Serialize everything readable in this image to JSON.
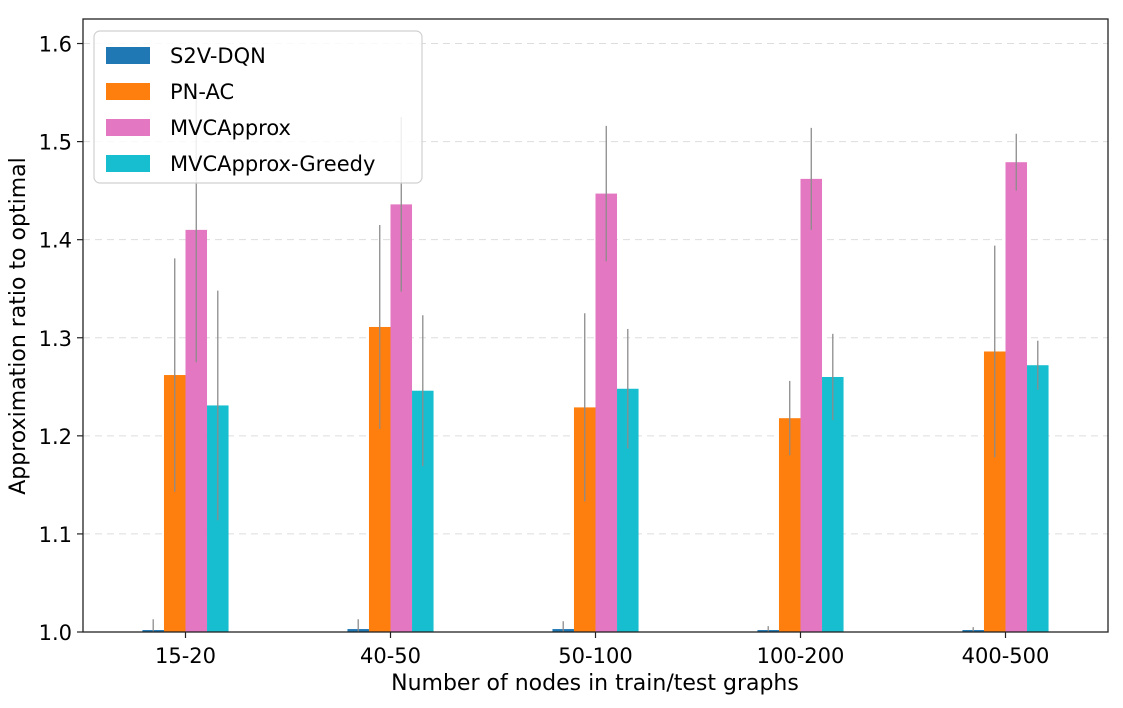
{
  "chart_data": {
    "type": "bar",
    "title": "",
    "xlabel": "Number of nodes in train/test graphs",
    "ylabel": "Approximation ratio to optimal",
    "ylim": [
      1.0,
      1.625
    ],
    "yticks": [
      "1.0",
      "1.1",
      "1.2",
      "1.3",
      "1.4",
      "1.5",
      "1.6"
    ],
    "grid": "horizontal-dashed",
    "legend_position": "top-left",
    "categories": [
      "15-20",
      "40-50",
      "50-100",
      "100-200",
      "400-500"
    ],
    "series": [
      {
        "name": "S2V-DQN",
        "color": "#1f77b4",
        "values": [
          1.002,
          1.003,
          1.003,
          1.002,
          1.002
        ],
        "errors": [
          0.011,
          0.01,
          0.008,
          0.004,
          0.003
        ]
      },
      {
        "name": "PN-AC",
        "color": "#ff7f0e",
        "values": [
          1.262,
          1.311,
          1.229,
          1.218,
          1.286
        ],
        "errors": [
          0.119,
          0.104,
          0.096,
          0.038,
          0.108
        ]
      },
      {
        "name": "MVCApprox",
        "color": "#e377c2",
        "values": [
          1.41,
          1.436,
          1.447,
          1.462,
          1.479
        ],
        "errors": [
          0.135,
          0.089,
          0.069,
          0.052,
          0.029
        ]
      },
      {
        "name": "MVCApprox-Greedy",
        "color": "#17becf",
        "values": [
          1.231,
          1.246,
          1.248,
          1.26,
          1.272
        ],
        "errors": [
          0.117,
          0.077,
          0.061,
          0.044,
          0.025
        ]
      }
    ]
  }
}
